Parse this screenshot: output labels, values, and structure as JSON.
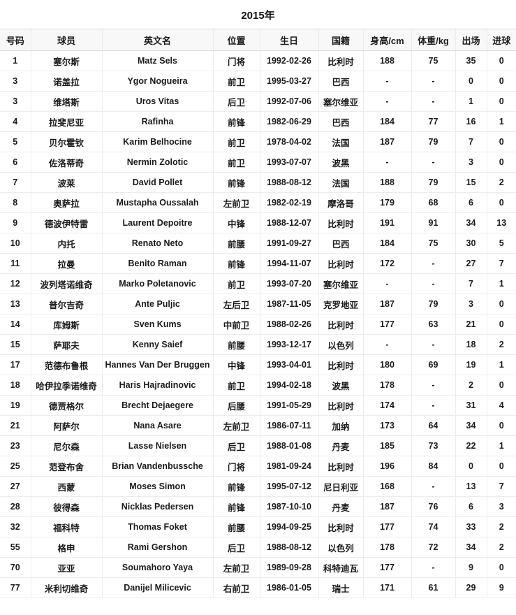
{
  "colors": {
    "header_bg": "#f8f8f8",
    "grid_border": "#ececec",
    "header_border": "#dddddd",
    "text": "#1b1b1b"
  },
  "chart_data": {
    "type": "table",
    "title": "2015年",
    "columns": [
      "号码",
      "球员",
      "英文名",
      "位置",
      "生日",
      "国籍",
      "身高/cm",
      "体重/kg",
      "出场",
      "进球"
    ],
    "rows": [
      [
        "1",
        "塞尔斯",
        "Matz Sels",
        "门将",
        "1992-02-26",
        "比利时",
        "188",
        "75",
        "35",
        "0"
      ],
      [
        "3",
        "诺盖拉",
        "Ygor Nogueira",
        "前卫",
        "1995-03-27",
        "巴西",
        "-",
        "-",
        "0",
        "0"
      ],
      [
        "3",
        "维塔斯",
        "Uros Vitas",
        "后卫",
        "1992-07-06",
        "塞尔维亚",
        "-",
        "-",
        "1",
        "0"
      ],
      [
        "4",
        "拉斐尼亚",
        "Rafinha",
        "前锋",
        "1982-06-29",
        "巴西",
        "184",
        "77",
        "16",
        "1"
      ],
      [
        "5",
        "贝尔霍钦",
        "Karim Belhocine",
        "前卫",
        "1978-04-02",
        "法国",
        "187",
        "79",
        "7",
        "0"
      ],
      [
        "6",
        "佐洛蒂奇",
        "Nermin Zolotic",
        "前卫",
        "1993-07-07",
        "波黑",
        "-",
        "-",
        "3",
        "0"
      ],
      [
        "7",
        "波莱",
        "David Pollet",
        "前锋",
        "1988-08-12",
        "法国",
        "188",
        "79",
        "15",
        "2"
      ],
      [
        "8",
        "奥萨拉",
        "Mustapha Oussalah",
        "左前卫",
        "1982-02-19",
        "摩洛哥",
        "179",
        "68",
        "6",
        "0"
      ],
      [
        "9",
        "德波伊特雷",
        "Laurent Depoitre",
        "中锋",
        "1988-12-07",
        "比利时",
        "191",
        "91",
        "34",
        "13"
      ],
      [
        "10",
        "内托",
        "Renato Neto",
        "前腰",
        "1991-09-27",
        "巴西",
        "184",
        "75",
        "30",
        "5"
      ],
      [
        "11",
        "拉曼",
        "Benito Raman",
        "前锋",
        "1994-11-07",
        "比利时",
        "172",
        "-",
        "27",
        "7"
      ],
      [
        "12",
        "波列塔诺维奇",
        "Marko Poletanovic",
        "前卫",
        "1993-07-20",
        "塞尔维亚",
        "-",
        "-",
        "7",
        "1"
      ],
      [
        "13",
        "普尔吉奇",
        "Ante Puljic",
        "左后卫",
        "1987-11-05",
        "克罗地亚",
        "187",
        "79",
        "3",
        "0"
      ],
      [
        "14",
        "库姆斯",
        "Sven Kums",
        "中前卫",
        "1988-02-26",
        "比利时",
        "177",
        "63",
        "21",
        "0"
      ],
      [
        "15",
        "萨耶夫",
        "Kenny Saief",
        "前腰",
        "1993-12-17",
        "以色列",
        "-",
        "-",
        "18",
        "2"
      ],
      [
        "17",
        "范德布鲁根",
        "Hannes Van Der Bruggen",
        "中锋",
        "1993-04-01",
        "比利时",
        "180",
        "69",
        "19",
        "1"
      ],
      [
        "18",
        "哈伊拉季诺维奇",
        "Haris Hajradinovic",
        "前卫",
        "1994-02-18",
        "波黑",
        "178",
        "-",
        "2",
        "0"
      ],
      [
        "19",
        "德贾格尔",
        "Brecht Dejaegere",
        "后腰",
        "1991-05-29",
        "比利时",
        "174",
        "-",
        "31",
        "4"
      ],
      [
        "21",
        "阿萨尔",
        "Nana Asare",
        "左前卫",
        "1986-07-11",
        "加纳",
        "173",
        "64",
        "34",
        "0"
      ],
      [
        "23",
        "尼尔森",
        "Lasse Nielsen",
        "后卫",
        "1988-01-08",
        "丹麦",
        "185",
        "73",
        "22",
        "1"
      ],
      [
        "25",
        "范登布舍",
        "Brian Vandenbussche",
        "门将",
        "1981-09-24",
        "比利时",
        "196",
        "84",
        "0",
        "0"
      ],
      [
        "27",
        "西蒙",
        "Moses Simon",
        "前锋",
        "1995-07-12",
        "尼日利亚",
        "168",
        "-",
        "13",
        "7"
      ],
      [
        "28",
        "彼得森",
        "Nicklas Pedersen",
        "前锋",
        "1987-10-10",
        "丹麦",
        "187",
        "76",
        "6",
        "3"
      ],
      [
        "32",
        "福科特",
        "Thomas Foket",
        "前腰",
        "1994-09-25",
        "比利时",
        "177",
        "74",
        "33",
        "2"
      ],
      [
        "55",
        "格申",
        "Rami Gershon",
        "后卫",
        "1988-08-12",
        "以色列",
        "178",
        "72",
        "34",
        "2"
      ],
      [
        "70",
        "亚亚",
        "Soumahoro Yaya",
        "左前卫",
        "1989-09-28",
        "科特迪瓦",
        "177",
        "-",
        "9",
        "0"
      ],
      [
        "77",
        "米利切维奇",
        "Danijel Milicevic",
        "右前卫",
        "1986-01-05",
        "瑞士",
        "171",
        "61",
        "29",
        "9"
      ]
    ]
  }
}
